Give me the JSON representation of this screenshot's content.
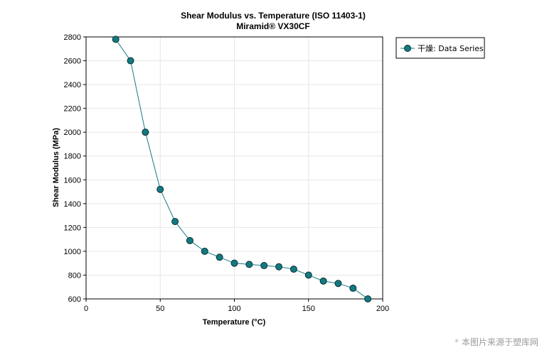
{
  "chart_data": {
    "type": "line",
    "title": "Shear Modulus vs. Temperature (ISO 11403-1)",
    "subtitle": "Miramid® VX30CF",
    "xlabel": "Temperature (°C)",
    "ylabel": "Shear Modulus  (MPa)",
    "xlim": [
      0,
      200
    ],
    "ylim": [
      600,
      2800
    ],
    "xticks": [
      0,
      50,
      100,
      150,
      200
    ],
    "yticks": [
      600,
      800,
      1000,
      1200,
      1400,
      1600,
      1800,
      2000,
      2200,
      2400,
      2600,
      2800
    ],
    "grid": true,
    "legend_position": "top-right, outside plot area",
    "series": [
      {
        "name": "干燥: Data Series",
        "color": "#137a82",
        "x": [
          20,
          30,
          40,
          50,
          60,
          70,
          80,
          90,
          100,
          110,
          120,
          130,
          140,
          150,
          160,
          170,
          180,
          190
        ],
        "y": [
          2780,
          2600,
          2000,
          1520,
          1250,
          1090,
          1000,
          950,
          900,
          890,
          880,
          870,
          850,
          800,
          750,
          730,
          690,
          600
        ]
      }
    ]
  },
  "watermark": {
    "star": "*",
    "text": "本图片来源于塑库网"
  }
}
